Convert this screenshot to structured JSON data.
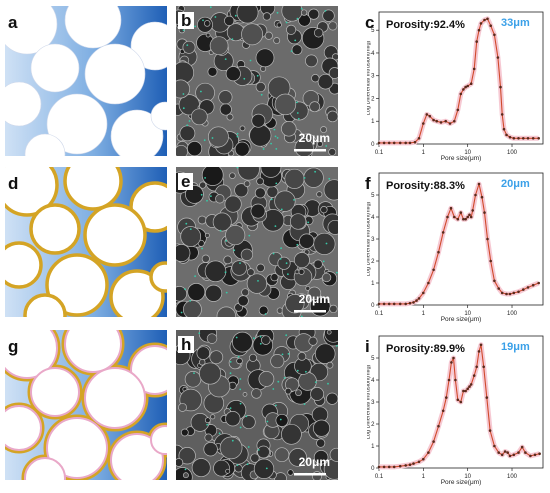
{
  "panels": {
    "a": {
      "label": "a"
    },
    "b": {
      "label": "b",
      "scale": "20μm"
    },
    "c": {
      "label": "c"
    },
    "d": {
      "label": "d"
    },
    "e": {
      "label": "e",
      "scale": "20μm"
    },
    "f": {
      "label": "f"
    },
    "g": {
      "label": "g"
    },
    "h": {
      "label": "h",
      "scale": "20μm"
    },
    "i": {
      "label": "i"
    }
  },
  "colors": {
    "background_blue": "#2b6fc4",
    "pore_white": "#ffffff",
    "coating_gold": "#d4a425",
    "inner_pink": "#e9a8c8",
    "curve_red": "#d04a2c",
    "curve_glow": "#f6c9d3",
    "porosity_blue": "#3aa0e8"
  },
  "chart_data": [
    {
      "type": "line",
      "panel": "c",
      "porosity_text": "Porosity:92.4%",
      "peak_label": "33μm",
      "xlabel": "Pore size(μm)",
      "ylabel": "Log Differential Intrusion(ml/g)",
      "xscale": "log",
      "xlim": [
        0.1,
        500
      ],
      "ylim": [
        0,
        5.8
      ],
      "xticks": [
        "0.1",
        "1",
        "10",
        "100"
      ],
      "yticks": [
        "0",
        "1",
        "2",
        "3",
        "4",
        "5"
      ],
      "x": [
        0.1,
        0.13,
        0.17,
        0.22,
        0.3,
        0.4,
        0.5,
        0.65,
        0.8,
        1.0,
        1.2,
        1.4,
        1.7,
        2.0,
        2.5,
        3.2,
        4.0,
        5.0,
        6.0,
        7.0,
        8.0,
        9.0,
        10,
        12,
        14,
        16,
        18,
        20,
        24,
        28,
        33,
        40,
        48,
        55,
        60,
        66,
        75,
        90,
        110,
        140,
        180,
        230,
        300,
        400
      ],
      "y": [
        0.05,
        0.05,
        0.05,
        0.05,
        0.05,
        0.05,
        0.05,
        0.08,
        0.25,
        0.9,
        1.3,
        1.22,
        1.05,
        1.0,
        0.95,
        1.0,
        0.9,
        1.0,
        1.5,
        2.2,
        2.4,
        2.5,
        2.55,
        2.65,
        3.3,
        4.5,
        5.0,
        5.3,
        5.45,
        5.5,
        5.2,
        4.8,
        3.8,
        2.5,
        1.3,
        0.65,
        0.4,
        0.3,
        0.25,
        0.25,
        0.25,
        0.25,
        0.25,
        0.25
      ]
    },
    {
      "type": "line",
      "panel": "f",
      "porosity_text": "Porosity:88.3%",
      "peak_label": "20μm",
      "xlabel": "Pore size(μm)",
      "ylabel": "Log Differential Intrusion(ml/g)",
      "xscale": "log",
      "xlim": [
        0.1,
        500
      ],
      "ylim": [
        0,
        6
      ],
      "xticks": [
        "0.1",
        "1",
        "10",
        "100"
      ],
      "yticks": [
        "0",
        "1",
        "2",
        "3",
        "4",
        "5"
      ],
      "x": [
        0.1,
        0.13,
        0.17,
        0.22,
        0.3,
        0.4,
        0.5,
        0.6,
        0.7,
        0.8,
        1.0,
        1.3,
        1.7,
        2.2,
        2.8,
        3.5,
        4.2,
        5.0,
        6.0,
        7.0,
        8.0,
        9.0,
        10,
        11,
        12,
        13,
        15,
        18,
        21,
        24,
        28,
        33,
        40,
        50,
        60,
        75,
        90,
        110,
        140,
        180,
        230,
        300,
        400
      ],
      "y": [
        0.05,
        0.05,
        0.05,
        0.05,
        0.05,
        0.05,
        0.08,
        0.12,
        0.2,
        0.3,
        0.55,
        1.0,
        1.6,
        2.4,
        3.3,
        4.0,
        4.4,
        4.0,
        3.9,
        4.2,
        3.9,
        3.9,
        4.0,
        4.1,
        4.0,
        4.3,
        5.0,
        5.5,
        4.9,
        4.2,
        3.0,
        2.0,
        1.1,
        0.75,
        0.55,
        0.5,
        0.5,
        0.55,
        0.6,
        0.7,
        0.8,
        0.9,
        1.0
      ]
    },
    {
      "type": "line",
      "panel": "i",
      "porosity_text": "Porosity:89.9%",
      "peak_label": "19μm",
      "xlabel": "Pore size(μm)",
      "ylabel": "Log Differential Intrusion(ml/g)",
      "xscale": "log",
      "xlim": [
        0.1,
        500
      ],
      "ylim": [
        0,
        6
      ],
      "xticks": [
        "0.1",
        "1",
        "10",
        "100"
      ],
      "yticks": [
        "0",
        "1",
        "2",
        "3",
        "4",
        "5"
      ],
      "x": [
        0.1,
        0.13,
        0.17,
        0.22,
        0.3,
        0.4,
        0.5,
        0.6,
        0.8,
        1.0,
        1.3,
        1.7,
        2.2,
        2.8,
        3.3,
        3.8,
        4.3,
        4.8,
        5.3,
        6.0,
        7.0,
        8.0,
        9.0,
        10,
        11,
        12,
        14,
        16,
        18,
        20,
        23,
        27,
        32,
        40,
        50,
        60,
        70,
        80,
        90,
        110,
        140,
        170,
        200,
        260,
        330,
        420
      ],
      "y": [
        0.05,
        0.05,
        0.05,
        0.05,
        0.08,
        0.12,
        0.15,
        0.2,
        0.28,
        0.4,
        0.7,
        1.2,
        1.9,
        2.6,
        3.2,
        4.0,
        4.8,
        5.0,
        4.0,
        3.1,
        3.0,
        3.5,
        3.5,
        3.6,
        3.7,
        3.8,
        4.2,
        4.6,
        5.3,
        5.6,
        4.6,
        3.2,
        1.7,
        1.0,
        0.7,
        0.6,
        0.75,
        0.7,
        0.55,
        0.6,
        0.7,
        0.95,
        0.7,
        0.55,
        0.6,
        0.65
      ]
    }
  ]
}
